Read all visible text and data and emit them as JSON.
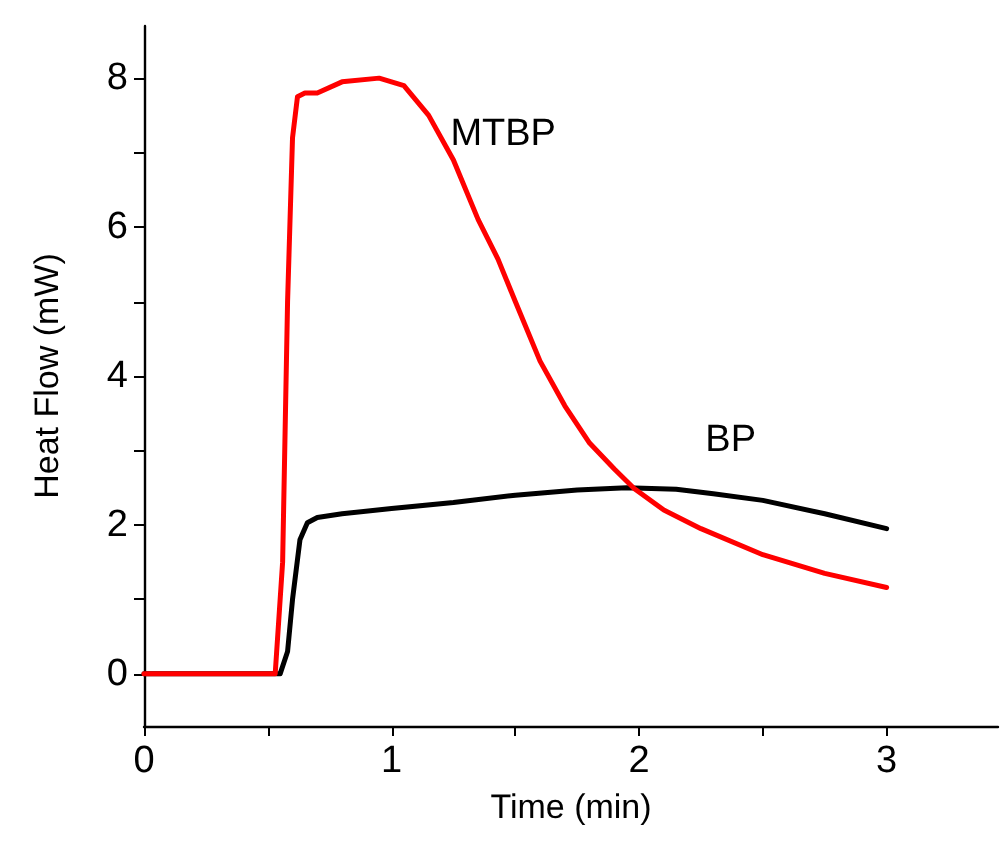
{
  "chart_data": {
    "type": "line",
    "xlabel": "Time (min)",
    "ylabel": "Heat Flow (mW)",
    "xlim": [
      0,
      3.45
    ],
    "ylim": [
      -0.7,
      8.7
    ],
    "xticks": [
      0,
      {
        "value": 0.5,
        "label": null
      },
      1,
      {
        "value": 1.5,
        "label": null
      },
      2,
      {
        "value": 2.5,
        "label": null
      },
      3
    ],
    "yticks": [
      0,
      {
        "value": 1,
        "label": null
      },
      2,
      {
        "value": 3,
        "label": null
      },
      4,
      {
        "value": 5,
        "label": null
      },
      6,
      {
        "value": 7,
        "label": null
      },
      8
    ],
    "grid": false,
    "legend": false,
    "marker": "none",
    "line_style": "solid",
    "series": [
      {
        "name": "MTBP",
        "color": "#ff0000",
        "x": [
          0,
          0.3,
          0.53,
          0.56,
          0.58,
          0.6,
          0.62,
          0.65,
          0.7,
          0.8,
          0.95,
          1.05,
          1.15,
          1.25,
          1.35,
          1.43,
          1.5,
          1.6,
          1.7,
          1.8,
          1.9,
          1.98,
          2.1,
          2.25,
          2.5,
          2.75,
          3.0
        ],
        "values": [
          0,
          0,
          0,
          1.5,
          5.0,
          7.2,
          7.75,
          7.8,
          7.8,
          7.95,
          8.0,
          7.9,
          7.5,
          6.9,
          6.1,
          5.57,
          5.0,
          4.2,
          3.6,
          3.1,
          2.75,
          2.49,
          2.2,
          1.95,
          1.6,
          1.35,
          1.16
        ]
      },
      {
        "name": "BP",
        "color": "#000000",
        "x": [
          0,
          0.3,
          0.55,
          0.58,
          0.6,
          0.63,
          0.66,
          0.7,
          0.8,
          1.0,
          1.25,
          1.5,
          1.75,
          1.95,
          2.15,
          2.3,
          2.5,
          2.75,
          3.0
        ],
        "values": [
          0,
          0,
          0,
          0.3,
          1.0,
          1.8,
          2.03,
          2.1,
          2.15,
          2.22,
          2.3,
          2.4,
          2.47,
          2.5,
          2.48,
          2.42,
          2.33,
          2.15,
          1.95
        ]
      }
    ]
  }
}
